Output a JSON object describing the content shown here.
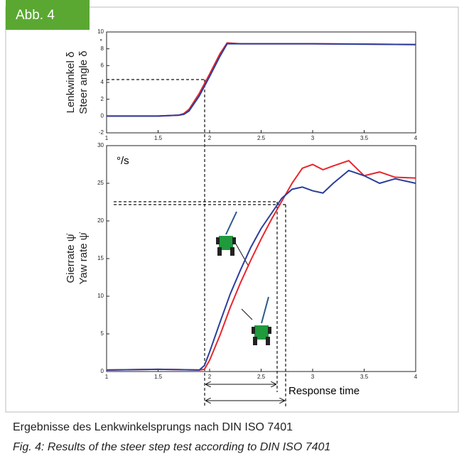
{
  "figure_label": "Abb. 4",
  "caption": [
    "Ergebnisse des Lenkwinkelsprungs nach DIN ISO 7401",
    "Fig. 4: Results of the steer step test according to DIN ISO 7401"
  ],
  "chart_data": [
    {
      "type": "line",
      "ylabel": [
        "Lenkwinkel δ",
        "Steer angle δ"
      ],
      "unit": "°",
      "x": [
        1,
        1.5,
        1.7,
        1.75,
        1.8,
        1.9,
        2,
        2.1,
        2.17,
        2.3,
        2.5,
        3,
        3.5,
        4
      ],
      "series": [
        {
          "color": "#e8262b",
          "values": [
            0,
            0,
            0.1,
            0.3,
            0.8,
            2.7,
            5.0,
            7.4,
            8.7,
            8.6,
            8.6,
            8.6,
            8.55,
            8.5
          ]
        },
        {
          "color": "#2b3e9c",
          "values": [
            0,
            0,
            0.1,
            0.2,
            0.6,
            2.4,
            4.7,
            7.1,
            8.6,
            8.6,
            8.6,
            8.6,
            8.55,
            8.5
          ]
        }
      ],
      "xlim": [
        1,
        4
      ],
      "xticks": [
        1,
        1.5,
        2,
        2.5,
        3,
        3.5,
        4
      ],
      "ylim": [
        -2,
        10
      ],
      "yticks": [
        -2,
        0,
        2,
        4,
        6,
        8,
        10
      ],
      "grid": false
    },
    {
      "type": "line",
      "ylabel": [
        "Gierrate ψ̇",
        "Yaw rate ψ̇"
      ],
      "unit": "°/s",
      "annotation": "Response time",
      "x": [
        1,
        1.5,
        1.9,
        1.95,
        2,
        2.1,
        2.2,
        2.3,
        2.4,
        2.5,
        2.6,
        2.7,
        2.8,
        2.9,
        3,
        3.1,
        3.2,
        3.35,
        3.5,
        3.65,
        3.8,
        4
      ],
      "series": [
        {
          "color": "#e8262b",
          "values": [
            0.2,
            0.3,
            0.2,
            0.3,
            1.5,
            4.8,
            8.5,
            11.8,
            14.8,
            17.6,
            20.2,
            22.6,
            25,
            27,
            27.5,
            26.8,
            27.3,
            28,
            26,
            26.5,
            25.8,
            25.7
          ]
        },
        {
          "color": "#2b3e9c",
          "values": [
            0.2,
            0.3,
            0.2,
            0.8,
            2.6,
            6.5,
            10.3,
            13.5,
            16.5,
            19,
            21,
            23,
            24.2,
            24.5,
            24,
            23.7,
            25,
            26.7,
            26,
            25,
            25.6,
            25
          ]
        }
      ],
      "xlim": [
        1,
        4
      ],
      "xticks": [
        1,
        1.5,
        2,
        2.5,
        3,
        3.5,
        4
      ],
      "ylim": [
        0,
        30
      ],
      "yticks": [
        0,
        5,
        10,
        15,
        20,
        25,
        30
      ],
      "grid": false
    }
  ]
}
